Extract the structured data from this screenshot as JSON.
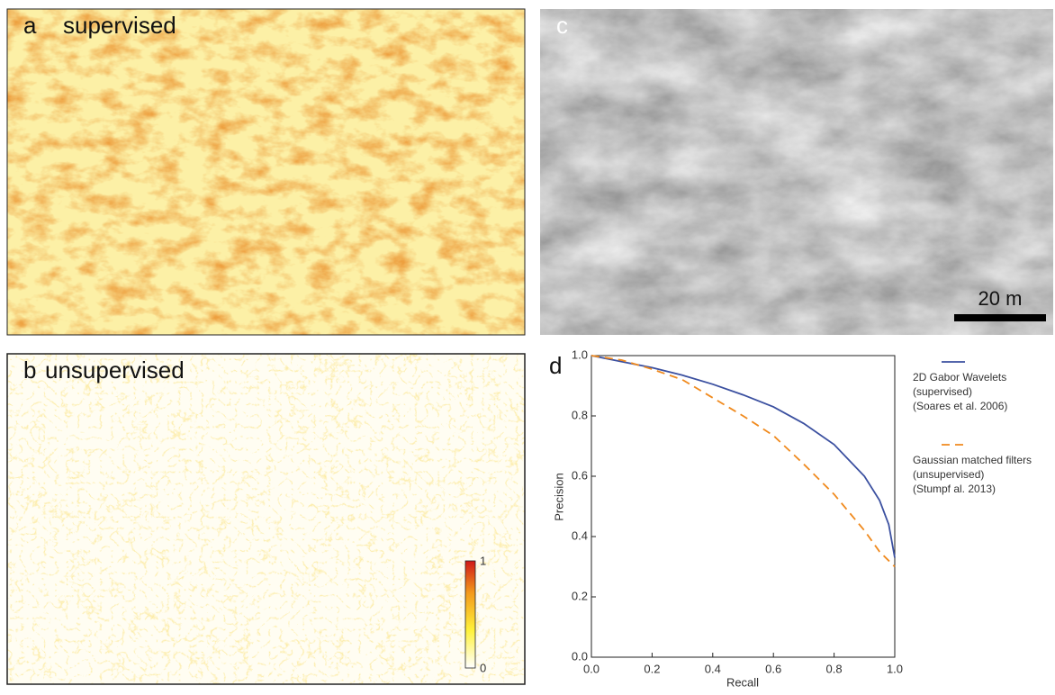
{
  "panels": {
    "a": {
      "letter": "a",
      "title": "supervised"
    },
    "b": {
      "letter": "b",
      "title": "unsupervised",
      "colorbar_max": "1",
      "colorbar_min": "0"
    },
    "c": {
      "letter": "c",
      "scale_bar": "20 m"
    },
    "d": {
      "letter": "d"
    }
  },
  "chart_data": {
    "type": "line",
    "x_label": "Recall",
    "y_label": "Precision",
    "x": [
      0,
      0.1,
      0.2,
      0.3,
      0.4,
      0.5,
      0.6,
      0.7,
      0.8,
      0.9,
      0.95,
      0.98,
      1.0
    ],
    "series": [
      {
        "name": "2D Gabor Wavelets",
        "legend_notes": [
          "(supervised)",
          "(Soares et al. 2006)"
        ],
        "color": "#3b50a0",
        "dash": "solid",
        "values": [
          1.0,
          0.98,
          0.96,
          0.935,
          0.905,
          0.87,
          0.83,
          0.775,
          0.705,
          0.6,
          0.52,
          0.44,
          0.33
        ]
      },
      {
        "name": "Gaussian matched filters",
        "legend_notes": [
          "(unsupervised)",
          "(Stumpf al. 2013)"
        ],
        "color": "#f08a1e",
        "dash": "dashed",
        "values": [
          1.0,
          0.985,
          0.955,
          0.92,
          0.86,
          0.8,
          0.735,
          0.64,
          0.54,
          0.42,
          0.35,
          0.32,
          0.3
        ]
      }
    ],
    "xlim": [
      0,
      1
    ],
    "ylim": [
      0,
      1
    ],
    "xticks": [
      {
        "value": 0,
        "label": "0.0"
      },
      0.2,
      0.4,
      0.6,
      0.8,
      {
        "value": 1,
        "label": "1.0"
      }
    ],
    "yticks": [
      {
        "value": 0,
        "label": "0.0"
      },
      0.2,
      0.4,
      0.6,
      0.8,
      {
        "value": 1,
        "label": "1.0"
      }
    ]
  }
}
